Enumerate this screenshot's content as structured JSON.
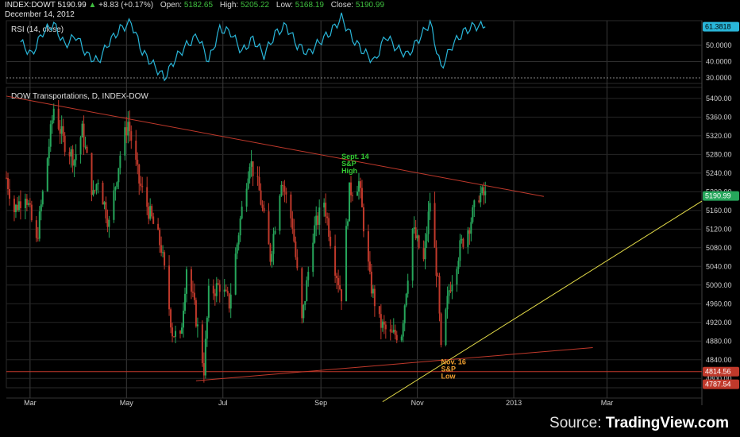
{
  "header": {
    "symbol": "INDEX:DOWT",
    "last": "5190.99",
    "change_icon": "up-triangle",
    "change": "+8.83 (+0.17%)",
    "open_label": "Open:",
    "open": "5182.65",
    "high_label": "High:",
    "high": "5205.22",
    "low_label": "Low:",
    "low": "5168.19",
    "close_label": "Close:",
    "close": "5190.99",
    "date": "December 14, 2012"
  },
  "source": {
    "prefix": "Source:",
    "brand": "TradingView.com"
  },
  "colors": {
    "background": "#000000",
    "up": "#26a65b",
    "down": "#c0392b",
    "rsi_line": "#29b6d9",
    "trendline_red": "#c0392b",
    "trendline_yellow": "#e8e04a",
    "annotation_green": "#33cc33",
    "annotation_orange": "#f0a030"
  },
  "chart_data": [
    {
      "type": "line",
      "title": "RSI (14, close)",
      "y_ticks": [
        "30.0000",
        "40.0000",
        "50.0000"
      ],
      "last_value_label": "61.3818",
      "ylim": [
        25,
        72
      ],
      "x": [
        "2012-02-24",
        "2012-03-02",
        "2012-03-09",
        "2012-03-16",
        "2012-03-23",
        "2012-03-30",
        "2012-04-06",
        "2012-04-13",
        "2012-04-20",
        "2012-04-27",
        "2012-05-04",
        "2012-05-11",
        "2012-05-18",
        "2012-05-25",
        "2012-06-01",
        "2012-06-08",
        "2012-06-15",
        "2012-06-22",
        "2012-06-29",
        "2012-07-06",
        "2012-07-13",
        "2012-07-20",
        "2012-07-27",
        "2012-08-03",
        "2012-08-10",
        "2012-08-17",
        "2012-08-24",
        "2012-08-31",
        "2012-09-07",
        "2012-09-14",
        "2012-09-21",
        "2012-09-28",
        "2012-10-05",
        "2012-10-12",
        "2012-10-19",
        "2012-10-26",
        "2012-11-02",
        "2012-11-09",
        "2012-11-16",
        "2012-11-23",
        "2012-11-30",
        "2012-12-07",
        "2012-12-14"
      ],
      "values": [
        52,
        44,
        58,
        63,
        50,
        56,
        44,
        40,
        52,
        60,
        64,
        46,
        38,
        30,
        42,
        50,
        56,
        40,
        60,
        58,
        46,
        54,
        44,
        57,
        62,
        50,
        45,
        52,
        58,
        67,
        54,
        46,
        40,
        56,
        48,
        44,
        54,
        64,
        36,
        50,
        58,
        62,
        61.38
      ]
    },
    {
      "type": "candlestick",
      "title": "DOW Transportations, D, INDEX-DOW",
      "x_tick_labels": [
        "Mar",
        "May",
        "Jul",
        "Sep",
        "Nov",
        "2013",
        "Mar"
      ],
      "y_ticks": [
        "4800.00",
        "4840.00",
        "4880.00",
        "4920.00",
        "4960.00",
        "5000.00",
        "5040.00",
        "5080.00",
        "5120.00",
        "5160.00",
        "5200.00",
        "5240.00",
        "5280.00",
        "5320.00",
        "5360.00",
        "5400.00"
      ],
      "ylim": [
        4775,
        5410
      ],
      "price_labels": [
        "5190.99",
        "4814.56",
        "4787.54"
      ],
      "horizontal_line": 4814.56,
      "anchors": [
        [
          "2012-02-15",
          5230
        ],
        [
          "2012-02-20",
          5160
        ],
        [
          "2012-02-27",
          5200
        ],
        [
          "2012-03-05",
          5090
        ],
        [
          "2012-03-13",
          5300
        ],
        [
          "2012-03-16",
          5380
        ],
        [
          "2012-03-22",
          5310
        ],
        [
          "2012-03-29",
          5270
        ],
        [
          "2012-04-03",
          5330
        ],
        [
          "2012-04-10",
          5190
        ],
        [
          "2012-04-13",
          5230
        ],
        [
          "2012-04-20",
          5130
        ],
        [
          "2012-04-27",
          5280
        ],
        [
          "2012-05-02",
          5350
        ],
        [
          "2012-05-09",
          5220
        ],
        [
          "2012-05-16",
          5150
        ],
        [
          "2012-05-23",
          5080
        ],
        [
          "2012-05-30",
          4900
        ],
        [
          "2012-06-04",
          4880
        ],
        [
          "2012-06-08",
          5040
        ],
        [
          "2012-06-13",
          4950
        ],
        [
          "2012-06-19",
          4820
        ],
        [
          "2012-06-22",
          4980
        ],
        [
          "2012-06-29",
          5000
        ],
        [
          "2012-07-05",
          4960
        ],
        [
          "2012-07-12",
          5140
        ],
        [
          "2012-07-18",
          5270
        ],
        [
          "2012-07-24",
          5200
        ],
        [
          "2012-07-31",
          5060
        ],
        [
          "2012-08-07",
          5230
        ],
        [
          "2012-08-14",
          5130
        ],
        [
          "2012-08-20",
          4920
        ],
        [
          "2012-08-27",
          5110
        ],
        [
          "2012-09-03",
          5180
        ],
        [
          "2012-09-10",
          5040
        ],
        [
          "2012-09-14",
          4980
        ],
        [
          "2012-09-19",
          5200
        ],
        [
          "2012-09-25",
          5220
        ],
        [
          "2012-10-02",
          5010
        ],
        [
          "2012-10-08",
          4920
        ],
        [
          "2012-10-15",
          4890
        ],
        [
          "2012-10-22",
          4900
        ],
        [
          "2012-10-29",
          5120
        ],
        [
          "2012-11-05",
          5050
        ],
        [
          "2012-11-09",
          5180
        ],
        [
          "2012-11-14",
          5000
        ],
        [
          "2012-11-16",
          4855
        ],
        [
          "2012-11-21",
          4990
        ],
        [
          "2012-11-28",
          5080
        ],
        [
          "2012-12-04",
          5130
        ],
        [
          "2012-12-10",
          5195
        ],
        [
          "2012-12-14",
          5191
        ]
      ],
      "annotations": [
        {
          "lines": [
            "Sept. 14",
            "S&P",
            "High"
          ],
          "date": "2012-09-14",
          "price": 5270,
          "color": "annotation_green"
        },
        {
          "lines": [
            "Nov. 16",
            "S&P",
            "Low"
          ],
          "date": "2012-11-16",
          "price": 4830,
          "color": "annotation_orange"
        }
      ],
      "trendlines": [
        {
          "color": "trendline_red",
          "from": [
            "2012-02-15",
            5405
          ],
          "to": [
            "2013-01-20",
            5190
          ]
        },
        {
          "color": "trendline_red",
          "from": [
            "2012-06-14",
            4795
          ],
          "to": [
            "2013-02-20",
            4866
          ]
        },
        {
          "color": "trendline_yellow",
          "from": [
            "2012-10-10",
            4750
          ],
          "to": [
            "2013-04-30",
            5180
          ]
        }
      ]
    }
  ]
}
